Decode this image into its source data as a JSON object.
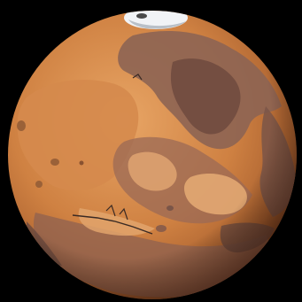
{
  "scene": {
    "subject": "planet-mars-illustration",
    "colors": {
      "space": "#000000",
      "base_light": "#e09a5a",
      "base_mid": "#c9793c",
      "base_dark": "#8a4c2a",
      "region_dark": "#7a5a4c",
      "region_darker": "#5e4138",
      "region_light": "#d99a63",
      "region_pale": "#e7ad78",
      "ice_cap": "#f1f3f6",
      "ice_shadow": "#b9c0c8",
      "crater": "#9a6138",
      "ridge_line": "#3a2a24"
    }
  }
}
